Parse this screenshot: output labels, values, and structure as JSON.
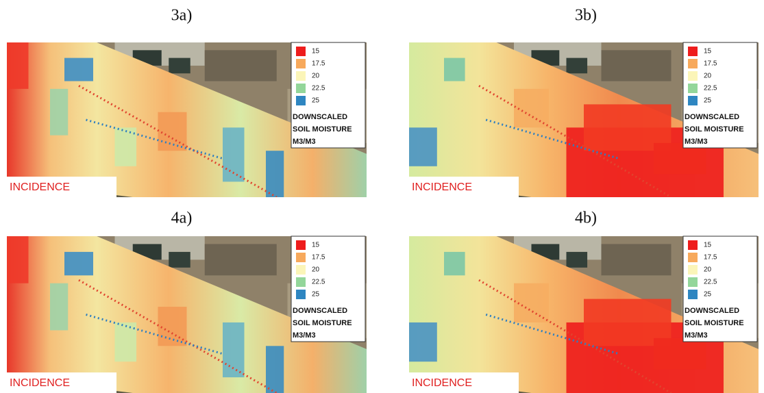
{
  "panels": [
    {
      "label": "3a)",
      "legend": {
        "items": [
          {
            "value": 15,
            "color": "#ee1c1c"
          },
          {
            "value": 17.5,
            "color": "#f7a95c"
          },
          {
            "value": 20,
            "color": "#fbf5b8"
          },
          {
            "value": 22.5,
            "color": "#93d69a"
          },
          {
            "value": 25,
            "color": "#2e86c1"
          }
        ],
        "title": [
          "DOWNSCALED",
          "SOIL MOISTURE",
          "M3/M3"
        ]
      },
      "corner_label": "INCIDENCE"
    },
    {
      "label": "3b)",
      "legend": {
        "items": [
          {
            "value": 15,
            "color": "#ee1c1c"
          },
          {
            "value": 17.5,
            "color": "#f7a95c"
          },
          {
            "value": 20,
            "color": "#fbf5b8"
          },
          {
            "value": 22.5,
            "color": "#93d69a"
          },
          {
            "value": 25,
            "color": "#2e86c1"
          }
        ],
        "title": [
          "DOWNSCALED",
          "SOIL MOISTURE",
          "M3/M3"
        ]
      },
      "corner_label": "INCIDENCE"
    },
    {
      "label": "4a)",
      "legend": {
        "items": [
          {
            "value": 15,
            "color": "#ee1c1c"
          },
          {
            "value": 17.5,
            "color": "#f7a95c"
          },
          {
            "value": 20,
            "color": "#fbf5b8"
          },
          {
            "value": 22.5,
            "color": "#93d69a"
          },
          {
            "value": 25,
            "color": "#2e86c1"
          }
        ],
        "title": [
          "DOWNSCALED",
          "SOIL MOISTURE",
          "M3/M3"
        ]
      },
      "corner_label": "INCIDENCE"
    },
    {
      "label": "4b)",
      "legend": {
        "items": [
          {
            "value": 15,
            "color": "#ee1c1c"
          },
          {
            "value": 17.5,
            "color": "#f7a95c"
          },
          {
            "value": 20,
            "color": "#fbf5b8"
          },
          {
            "value": 22.5,
            "color": "#93d69a"
          },
          {
            "value": 25,
            "color": "#2e86c1"
          }
        ],
        "title": [
          "DOWNSCALED",
          "SOIL MOISTURE",
          "M3/M3"
        ]
      },
      "corner_label": "INCIDENCE"
    }
  ]
}
